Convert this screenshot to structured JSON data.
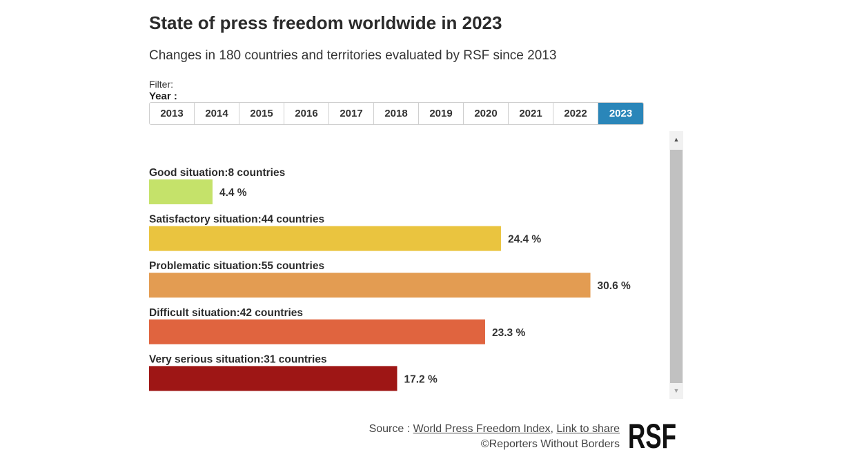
{
  "title": "State of press freedom worldwide in 2023",
  "subtitle": "Changes in 180 countries and territories evaluated by RSF since 2013",
  "filter": {
    "label": "Filter:",
    "year_label": "Year :",
    "years": [
      "2013",
      "2014",
      "2015",
      "2016",
      "2017",
      "2018",
      "2019",
      "2020",
      "2021",
      "2022",
      "2023"
    ],
    "selected": "2023"
  },
  "footer": {
    "source_prefix": "Source : ",
    "source_link": "World Press Freedom Index",
    "separator": ", ",
    "share_link": "Link to share",
    "copyright": "©Reporters Without Borders",
    "logo_text": "RSF"
  },
  "chart_data": {
    "type": "bar",
    "orientation": "horizontal",
    "categories": [
      "Good situation:8 countries",
      "Satisfactory situation:44 countries",
      "Problematic situation:55 countries",
      "Difficult situation:42 countries",
      "Very serious situation:31 countries"
    ],
    "values": [
      4.4,
      24.4,
      30.6,
      23.3,
      17.2
    ],
    "value_labels": [
      "4.4 %",
      "24.4 %",
      "30.6 %",
      "23.3 %",
      "17.2 %"
    ],
    "colors": [
      "#c5e26a",
      "#eac43f",
      "#e39c52",
      "#e0643f",
      "#9e1615"
    ],
    "unit": "%",
    "grid": false
  }
}
